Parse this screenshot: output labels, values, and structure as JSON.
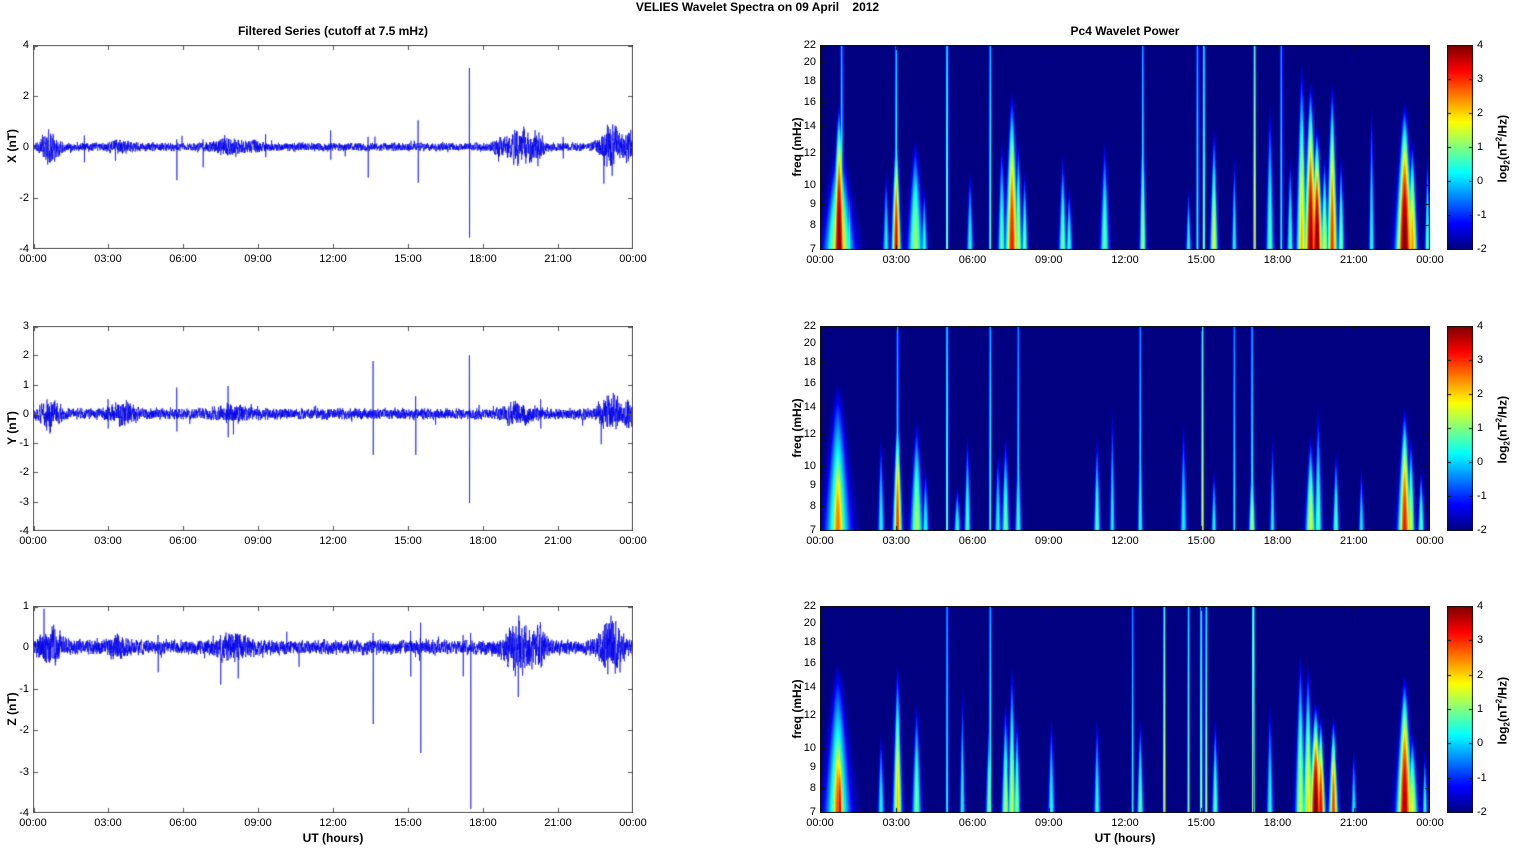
{
  "title": "VELIES Wavelet Spectra on 09 April    2012",
  "left_title": "Filtered Series (cutoff at 7.5 mHz)",
  "right_title": "Pc4 Wavelet Power",
  "xlabel": "UT (hours)",
  "x_tick_labels": [
    "00:00",
    "03:00",
    "06:00",
    "09:00",
    "12:00",
    "15:00",
    "18:00",
    "21:00",
    "00:00"
  ],
  "x_tick_hours": [
    0,
    3,
    6,
    9,
    12,
    15,
    18,
    21,
    24
  ],
  "colors": {
    "trace_blue": "#0000e8",
    "background_navy": "#00008f",
    "axis": "#555555"
  },
  "colorbar": {
    "range": [
      -2,
      4
    ],
    "ticks": [
      -2,
      -1,
      0,
      1,
      2,
      3,
      4
    ],
    "label_parts": {
      "pre": "log",
      "sub": "2",
      "mid": "(nT",
      "sup": "2",
      "post": "/Hz)"
    }
  },
  "chart_data": [
    {
      "id": "ts-x",
      "type": "line",
      "ylabel": "X (nT)",
      "ylim": [
        -4,
        4
      ],
      "yticks": [
        -4,
        -2,
        0,
        2,
        4
      ],
      "xlim_hours": [
        0,
        24
      ],
      "noise_base": 0.13,
      "seed": 11,
      "bursts": [
        [
          0.7,
          0.25,
          0.42
        ],
        [
          3.5,
          0.3,
          0.1
        ],
        [
          7.8,
          0.45,
          0.18
        ],
        [
          8.9,
          0.2,
          0.12
        ],
        [
          18.6,
          0.15,
          0.15
        ],
        [
          19.5,
          0.4,
          0.5
        ],
        [
          20.2,
          0.15,
          0.3
        ],
        [
          23.1,
          0.3,
          0.75
        ],
        [
          23.85,
          0.12,
          0.45
        ]
      ],
      "spikes": [
        [
          2.05,
          0.45,
          -0.6
        ],
        [
          5.75,
          0.3,
          -1.3
        ],
        [
          6.8,
          0.3,
          -0.8
        ],
        [
          9.3,
          0.5,
          -0.4
        ],
        [
          11.9,
          0.65,
          -0.5
        ],
        [
          13.4,
          0.4,
          -1.2
        ],
        [
          15.4,
          1.05,
          -1.4
        ],
        [
          17.45,
          3.1,
          -3.55
        ],
        [
          21.2,
          0.4,
          -0.45
        ]
      ]
    },
    {
      "id": "spec-x",
      "type": "heatmap",
      "ylabel": "freq (mHz)",
      "flim": [
        7,
        22
      ],
      "clim": [
        -2,
        4
      ],
      "yticks": [
        7,
        8,
        9,
        10,
        12,
        14,
        16,
        18,
        20,
        22
      ],
      "plumes": [
        [
          0.75,
          0.1,
          16,
          4.2
        ],
        [
          0.75,
          0.22,
          13,
          2.0
        ],
        [
          1.15,
          0.04,
          10,
          0.6
        ],
        [
          2.6,
          0.05,
          11,
          0.4
        ],
        [
          3.0,
          0.07,
          14,
          3.4
        ],
        [
          3.75,
          0.12,
          13,
          1.2
        ],
        [
          4.1,
          0.05,
          10,
          0.5
        ],
        [
          5.9,
          0.05,
          11,
          0.5
        ],
        [
          7.15,
          0.06,
          13,
          0.9
        ],
        [
          7.55,
          0.1,
          17,
          3.2
        ],
        [
          7.8,
          0.06,
          13,
          1.5
        ],
        [
          8.05,
          0.05,
          11,
          0.9
        ],
        [
          9.55,
          0.06,
          12,
          1.0
        ],
        [
          9.8,
          0.05,
          10,
          0.6
        ],
        [
          11.2,
          0.07,
          13,
          0.9
        ],
        [
          12.7,
          0.05,
          16,
          1.3
        ],
        [
          14.5,
          0.04,
          10,
          0.5
        ],
        [
          15.5,
          0.06,
          14,
          1.7
        ],
        [
          16.3,
          0.04,
          12,
          0.5
        ],
        [
          17.7,
          0.06,
          16,
          0.8
        ],
        [
          18.5,
          0.05,
          12,
          0.7
        ],
        [
          18.95,
          0.08,
          20,
          2.2
        ],
        [
          19.3,
          0.1,
          18,
          3.9
        ],
        [
          19.55,
          0.09,
          14,
          4.2
        ],
        [
          19.85,
          0.06,
          12,
          1.6
        ],
        [
          20.15,
          0.08,
          18,
          3.0
        ],
        [
          20.5,
          0.05,
          12,
          1.1
        ],
        [
          21.7,
          0.04,
          16,
          0.6
        ],
        [
          23.0,
          0.13,
          16,
          4.2
        ],
        [
          23.3,
          0.08,
          13,
          2.4
        ],
        [
          23.9,
          0.04,
          12,
          0.9
        ]
      ],
      "lines": [
        [
          0.85,
          1.1
        ],
        [
          3.0,
          1.1
        ],
        [
          5.0,
          1.6
        ],
        [
          6.7,
          1.0
        ],
        [
          12.7,
          0.8
        ],
        [
          14.85,
          0.9
        ],
        [
          15.1,
          1.8
        ],
        [
          17.1,
          2.2
        ],
        [
          18.15,
          0.7
        ]
      ]
    },
    {
      "id": "ts-y",
      "type": "line",
      "ylabel": "Y (nT)",
      "ylim": [
        -4,
        3
      ],
      "yticks": [
        -4,
        -3,
        -2,
        -1,
        0,
        1,
        2,
        3
      ],
      "xlim_hours": [
        0,
        24
      ],
      "noise_base": 0.15,
      "seed": 22,
      "bursts": [
        [
          0.7,
          0.25,
          0.33
        ],
        [
          3.6,
          0.35,
          0.22
        ],
        [
          8.0,
          0.4,
          0.15
        ],
        [
          19.4,
          0.4,
          0.22
        ],
        [
          23.1,
          0.3,
          0.4
        ],
        [
          23.85,
          0.12,
          0.3
        ]
      ],
      "spikes": [
        [
          3.0,
          0.5,
          -0.5
        ],
        [
          5.75,
          0.9,
          -0.6
        ],
        [
          7.8,
          0.95,
          -0.8
        ],
        [
          13.6,
          1.8,
          -1.4
        ],
        [
          15.3,
          0.6,
          -1.4
        ],
        [
          17.45,
          2.0,
          -3.05
        ],
        [
          20.3,
          0.5,
          -0.5
        ]
      ]
    },
    {
      "id": "spec-y",
      "type": "heatmap",
      "ylabel": "freq (mHz)",
      "flim": [
        7,
        22
      ],
      "clim": [
        -2,
        4
      ],
      "yticks": [
        7,
        8,
        9,
        10,
        12,
        14,
        16,
        18,
        20,
        22
      ],
      "plumes": [
        [
          0.7,
          0.12,
          13,
          2.6
        ],
        [
          0.7,
          0.2,
          16,
          1.1
        ],
        [
          2.4,
          0.05,
          12,
          0.4
        ],
        [
          3.05,
          0.07,
          14,
          3.0
        ],
        [
          3.8,
          0.1,
          13,
          1.3
        ],
        [
          4.15,
          0.05,
          10,
          0.5
        ],
        [
          5.4,
          0.05,
          9,
          0.6
        ],
        [
          5.8,
          0.05,
          12,
          0.8
        ],
        [
          7.0,
          0.05,
          11,
          0.5
        ],
        [
          7.3,
          0.06,
          12,
          1.0
        ],
        [
          7.8,
          0.05,
          12,
          0.7
        ],
        [
          10.9,
          0.05,
          12,
          0.8
        ],
        [
          11.5,
          0.04,
          14,
          0.4
        ],
        [
          12.6,
          0.04,
          14,
          0.6
        ],
        [
          14.3,
          0.05,
          13,
          0.4
        ],
        [
          15.5,
          0.04,
          10,
          0.5
        ],
        [
          17.0,
          0.05,
          11,
          1.4
        ],
        [
          17.8,
          0.04,
          12,
          0.4
        ],
        [
          19.3,
          0.08,
          12,
          1.6
        ],
        [
          19.6,
          0.06,
          14,
          0.9
        ],
        [
          20.3,
          0.05,
          11,
          0.9
        ],
        [
          21.3,
          0.04,
          10,
          0.4
        ],
        [
          23.0,
          0.1,
          14,
          3.2
        ],
        [
          23.25,
          0.06,
          12,
          1.5
        ],
        [
          23.65,
          0.05,
          10,
          0.9
        ]
      ],
      "lines": [
        [
          3.05,
          0.8
        ],
        [
          5.0,
          1.4
        ],
        [
          6.7,
          0.9
        ],
        [
          7.8,
          0.5
        ],
        [
          12.6,
          0.5
        ],
        [
          15.05,
          1.9
        ],
        [
          16.3,
          0.5
        ],
        [
          17.0,
          0.8
        ]
      ]
    },
    {
      "id": "ts-z",
      "type": "line",
      "ylabel": "Z (nT)",
      "ylim": [
        -4,
        1
      ],
      "yticks": [
        -4,
        -3,
        -2,
        -1,
        0,
        1
      ],
      "xlim_hours": [
        0,
        24
      ],
      "noise_base": 0.14,
      "seed": 33,
      "bursts": [
        [
          0.7,
          0.3,
          0.32
        ],
        [
          3.4,
          0.3,
          0.12
        ],
        [
          8.0,
          0.45,
          0.18
        ],
        [
          19.5,
          0.45,
          0.4
        ],
        [
          20.3,
          0.15,
          0.25
        ],
        [
          23.1,
          0.3,
          0.45
        ]
      ],
      "spikes": [
        [
          5.0,
          0.3,
          -0.6
        ],
        [
          7.5,
          0.3,
          -0.9
        ],
        [
          8.2,
          0.3,
          -0.75
        ],
        [
          13.6,
          0.35,
          -1.85
        ],
        [
          15.1,
          0.4,
          -0.7
        ],
        [
          15.5,
          0.6,
          -2.55
        ],
        [
          17.2,
          0.3,
          -0.7
        ],
        [
          17.5,
          0.35,
          -3.9
        ],
        [
          19.4,
          0.3,
          -1.2
        ]
      ]
    },
    {
      "id": "spec-z",
      "type": "heatmap",
      "ylabel": "freq (mHz)",
      "flim": [
        7,
        22
      ],
      "clim": [
        -2,
        4
      ],
      "yticks": [
        7,
        8,
        9,
        10,
        12,
        14,
        16,
        18,
        20,
        22
      ],
      "plumes": [
        [
          0.7,
          0.12,
          13,
          2.8
        ],
        [
          0.78,
          0.05,
          11,
          3.6
        ],
        [
          0.7,
          0.2,
          16,
          1.2
        ],
        [
          2.4,
          0.05,
          11,
          0.4
        ],
        [
          3.05,
          0.07,
          16,
          2.2
        ],
        [
          3.8,
          0.07,
          13,
          1.0
        ],
        [
          5.6,
          0.04,
          14,
          0.5
        ],
        [
          6.65,
          0.05,
          12,
          1.0
        ],
        [
          7.3,
          0.06,
          13,
          1.4
        ],
        [
          7.55,
          0.06,
          16,
          1.6
        ],
        [
          7.75,
          0.05,
          12,
          1.2
        ],
        [
          9.1,
          0.05,
          12,
          0.5
        ],
        [
          10.9,
          0.05,
          12,
          0.5
        ],
        [
          12.6,
          0.05,
          12,
          0.9
        ],
        [
          15.55,
          0.05,
          12,
          0.9
        ],
        [
          17.7,
          0.05,
          13,
          0.5
        ],
        [
          18.9,
          0.08,
          17,
          1.5
        ],
        [
          19.2,
          0.08,
          16,
          2.0
        ],
        [
          19.5,
          0.1,
          13,
          4.2
        ],
        [
          19.7,
          0.07,
          12,
          3.4
        ],
        [
          20.2,
          0.07,
          12,
          3.0
        ],
        [
          21.0,
          0.04,
          10,
          0.4
        ],
        [
          23.0,
          0.12,
          15,
          3.8
        ],
        [
          23.3,
          0.09,
          11,
          1.6
        ],
        [
          23.8,
          0.04,
          10,
          0.5
        ]
      ],
      "lines": [
        [
          5.0,
          0.7
        ],
        [
          6.7,
          0.9
        ],
        [
          12.3,
          0.5
        ],
        [
          13.55,
          2.1
        ],
        [
          14.5,
          1.2
        ],
        [
          15.0,
          1.9
        ],
        [
          15.2,
          1.5
        ],
        [
          17.05,
          3.3
        ]
      ]
    }
  ]
}
